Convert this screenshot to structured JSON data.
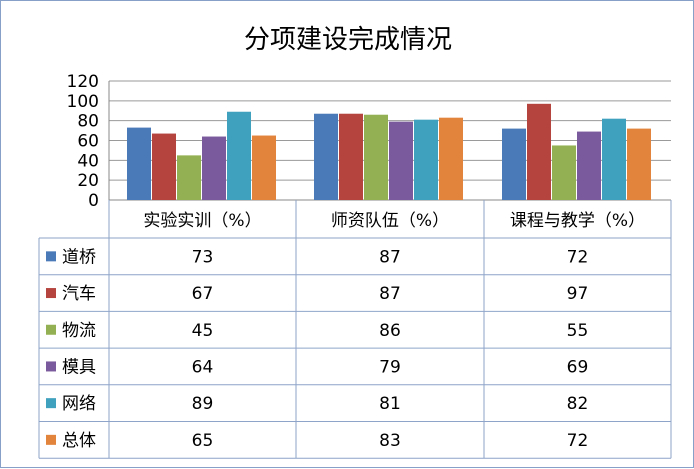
{
  "chart_data": {
    "type": "bar",
    "title": "分项建设完成情况",
    "categories": [
      "实验实训（%）",
      "师资队伍（%）",
      "课程与教学（%）"
    ],
    "yticks": [
      "0",
      "20",
      "40",
      "60",
      "80",
      "100",
      "120"
    ],
    "ylim": [
      0,
      120
    ],
    "grid": true,
    "legend": "data-table",
    "series": [
      {
        "name": "道桥",
        "color": "#4a7ab8",
        "values": [
          73,
          87,
          72
        ],
        "labels": [
          "73",
          "87",
          "72"
        ]
      },
      {
        "name": "汽车",
        "color": "#b5443f",
        "values": [
          67,
          87,
          97
        ],
        "labels": [
          "67",
          "87",
          "97"
        ]
      },
      {
        "name": "物流",
        "color": "#93b152",
        "values": [
          45,
          86,
          55
        ],
        "labels": [
          "45",
          "86",
          "55"
        ]
      },
      {
        "name": "模具",
        "color": "#7a5a9c",
        "values": [
          64,
          79,
          69
        ],
        "labels": [
          "64",
          "79",
          "69"
        ]
      },
      {
        "name": "网络",
        "color": "#3fa1bd",
        "values": [
          89,
          81,
          82
        ],
        "labels": [
          "89",
          "81",
          "82"
        ]
      },
      {
        "name": "总体",
        "color": "#e2843b",
        "values": [
          65,
          83,
          72
        ],
        "labels": [
          "65",
          "83",
          "72"
        ]
      }
    ]
  }
}
